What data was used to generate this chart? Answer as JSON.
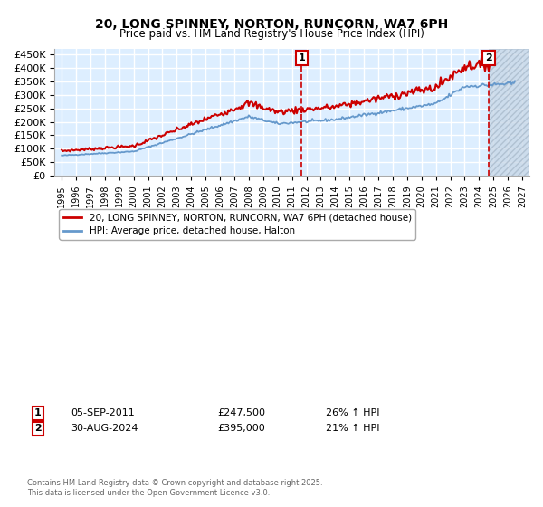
{
  "title": "20, LONG SPINNEY, NORTON, RUNCORN, WA7 6PH",
  "subtitle": "Price paid vs. HM Land Registry's House Price Index (HPI)",
  "ylim": [
    0,
    470000
  ],
  "yticks": [
    0,
    50000,
    100000,
    150000,
    200000,
    250000,
    300000,
    350000,
    400000,
    450000
  ],
  "ytick_labels": [
    "£0",
    "£50K",
    "£100K",
    "£150K",
    "£200K",
    "£250K",
    "£300K",
    "£350K",
    "£400K",
    "£450K"
  ],
  "xlim_start": 1994.5,
  "xlim_end": 2027.5,
  "xtick_years": [
    1995,
    1996,
    1997,
    1998,
    1999,
    2000,
    2001,
    2002,
    2003,
    2004,
    2005,
    2006,
    2007,
    2008,
    2009,
    2010,
    2011,
    2012,
    2013,
    2014,
    2015,
    2016,
    2017,
    2018,
    2019,
    2020,
    2021,
    2022,
    2023,
    2024,
    2025,
    2026,
    2027
  ],
  "transaction1_x": 2011.67,
  "transaction1_label": "1",
  "transaction1_date": "05-SEP-2011",
  "transaction1_price": "£247,500",
  "transaction1_hpi": "26% ↑ HPI",
  "transaction2_x": 2024.67,
  "transaction2_label": "2",
  "transaction2_date": "30-AUG-2024",
  "transaction2_price": "£395,000",
  "transaction2_hpi": "21% ↑ HPI",
  "red_line_color": "#cc0000",
  "blue_line_color": "#6699cc",
  "chart_bg": "#ddeeff",
  "grid_color": "#ffffff",
  "legend_label_red": "20, LONG SPINNEY, NORTON, RUNCORN, WA7 6PH (detached house)",
  "legend_label_blue": "HPI: Average price, detached house, Halton",
  "footer": "Contains HM Land Registry data © Crown copyright and database right 2025.\nThis data is licensed under the Open Government Licence v3.0."
}
